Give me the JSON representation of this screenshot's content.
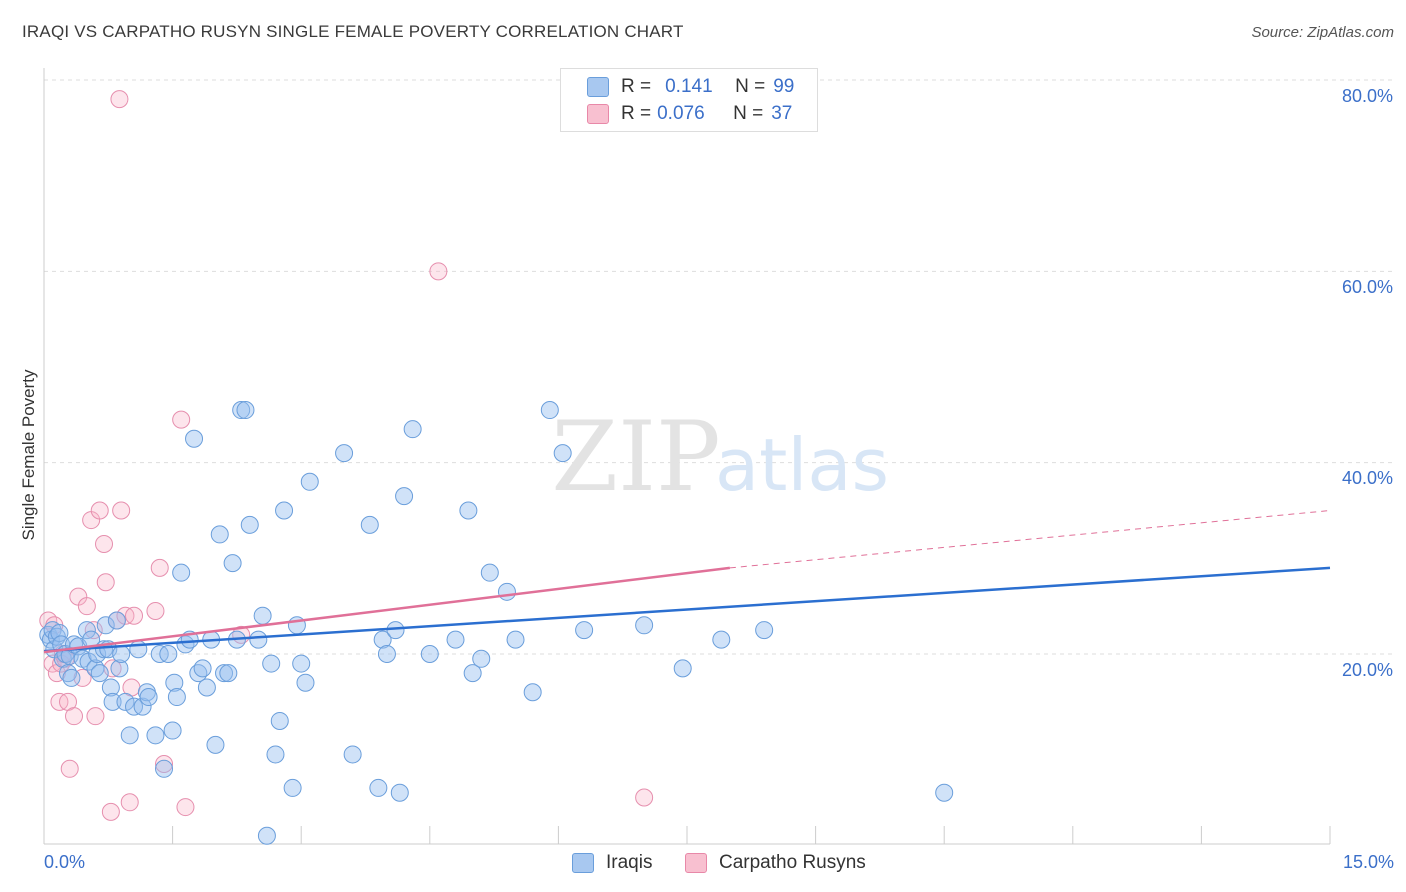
{
  "title": "IRAQI VS CARPATHO RUSYN SINGLE FEMALE POVERTY CORRELATION CHART",
  "source": "Source: ZipAtlas.com",
  "watermark": {
    "zip": "ZIP",
    "atlas": "atlas"
  },
  "legend": {
    "rows": [
      {
        "r_label": "R =",
        "r_value": "0.141",
        "n_label": "N =",
        "n_value": "99",
        "color": "#a8c8f0",
        "border": "#6a9edb"
      },
      {
        "r_label": "R =",
        "r_value": "0.076",
        "n_label": "N =",
        "n_value": "37",
        "color": "#f8c0d0",
        "border": "#e888a8"
      }
    ]
  },
  "bottom_legend": [
    {
      "label": "Iraqis",
      "color": "#a8c8f0",
      "border": "#6a9edb"
    },
    {
      "label": "Carpatho Rusyns",
      "color": "#f8c0d0",
      "border": "#e888a8"
    }
  ],
  "colors": {
    "blue_fill": "rgba(150,190,240,0.45)",
    "blue_stroke": "#6a9edb",
    "blue_line": "#2b6fd0",
    "pink_fill": "rgba(248,180,200,0.35)",
    "pink_stroke": "#e68fae",
    "pink_line": "#e07098",
    "grid": "#dddddd",
    "tick_text": "#3b6fc9"
  },
  "chart_data": {
    "type": "scatter",
    "title": "IRAQI VS CARPATHO RUSYN SINGLE FEMALE POVERTY CORRELATION CHART",
    "xlabel": "",
    "ylabel": "Single Female Poverty",
    "xlim": [
      0,
      15
    ],
    "ylim": [
      0,
      82
    ],
    "x_tick_labels": [
      "0.0%",
      "15.0%"
    ],
    "y_ticks": [
      20,
      40,
      60,
      80
    ],
    "y_tick_labels": [
      "20.0%",
      "40.0%",
      "60.0%",
      "80.0%"
    ],
    "series": [
      {
        "name": "Iraqis",
        "trend": {
          "x": [
            0,
            15
          ],
          "y": [
            20.3,
            29.0
          ]
        },
        "points": [
          [
            0.05,
            22.0
          ],
          [
            0.08,
            21.5
          ],
          [
            0.1,
            22.5
          ],
          [
            0.12,
            20.5
          ],
          [
            0.15,
            21.8
          ],
          [
            0.18,
            22.2
          ],
          [
            0.2,
            21.0
          ],
          [
            0.22,
            19.5
          ],
          [
            0.25,
            20.0
          ],
          [
            0.28,
            18.0
          ],
          [
            0.3,
            19.8
          ],
          [
            0.32,
            17.5
          ],
          [
            0.35,
            21.0
          ],
          [
            0.4,
            20.8
          ],
          [
            0.45,
            19.5
          ],
          [
            0.5,
            22.5
          ],
          [
            0.52,
            19.2
          ],
          [
            0.55,
            21.5
          ],
          [
            0.6,
            18.5
          ],
          [
            0.62,
            20.0
          ],
          [
            0.65,
            18.0
          ],
          [
            0.7,
            20.5
          ],
          [
            0.72,
            23.0
          ],
          [
            0.75,
            20.5
          ],
          [
            0.78,
            16.5
          ],
          [
            0.8,
            15.0
          ],
          [
            0.85,
            23.5
          ],
          [
            0.88,
            18.5
          ],
          [
            0.9,
            20.0
          ],
          [
            0.95,
            15.0
          ],
          [
            1.0,
            11.5
          ],
          [
            1.05,
            14.5
          ],
          [
            1.1,
            20.5
          ],
          [
            1.15,
            14.5
          ],
          [
            1.2,
            16.0
          ],
          [
            1.22,
            15.5
          ],
          [
            1.3,
            11.5
          ],
          [
            1.35,
            20.0
          ],
          [
            1.4,
            8.0
          ],
          [
            1.45,
            20.0
          ],
          [
            1.5,
            12.0
          ],
          [
            1.52,
            17.0
          ],
          [
            1.55,
            15.5
          ],
          [
            1.6,
            28.5
          ],
          [
            1.65,
            21.0
          ],
          [
            1.7,
            21.5
          ],
          [
            1.75,
            42.5
          ],
          [
            1.8,
            18.0
          ],
          [
            1.85,
            18.5
          ],
          [
            1.9,
            16.5
          ],
          [
            1.95,
            21.5
          ],
          [
            2.0,
            10.5
          ],
          [
            2.05,
            32.5
          ],
          [
            2.1,
            18.0
          ],
          [
            2.15,
            18.0
          ],
          [
            2.2,
            29.5
          ],
          [
            2.25,
            21.5
          ],
          [
            2.3,
            45.5
          ],
          [
            2.35,
            45.5
          ],
          [
            2.4,
            33.5
          ],
          [
            2.5,
            21.5
          ],
          [
            2.55,
            24.0
          ],
          [
            2.6,
            1.0
          ],
          [
            2.65,
            19.0
          ],
          [
            2.7,
            9.5
          ],
          [
            2.75,
            13.0
          ],
          [
            2.8,
            35.0
          ],
          [
            2.9,
            6.0
          ],
          [
            2.95,
            23.0
          ],
          [
            3.0,
            19.0
          ],
          [
            3.05,
            17.0
          ],
          [
            3.1,
            38.0
          ],
          [
            3.5,
            41.0
          ],
          [
            3.6,
            9.5
          ],
          [
            3.8,
            33.5
          ],
          [
            3.9,
            6.0
          ],
          [
            3.95,
            21.5
          ],
          [
            4.0,
            20.0
          ],
          [
            4.1,
            22.5
          ],
          [
            4.15,
            5.5
          ],
          [
            4.2,
            36.5
          ],
          [
            4.3,
            43.5
          ],
          [
            4.5,
            20.0
          ],
          [
            4.8,
            21.5
          ],
          [
            4.95,
            35.0
          ],
          [
            5.0,
            18.0
          ],
          [
            5.1,
            19.5
          ],
          [
            5.2,
            28.5
          ],
          [
            5.4,
            26.5
          ],
          [
            5.5,
            21.5
          ],
          [
            5.7,
            16.0
          ],
          [
            5.9,
            45.5
          ],
          [
            6.05,
            41.0
          ],
          [
            6.3,
            22.5
          ],
          [
            7.0,
            23.0
          ],
          [
            7.45,
            18.5
          ],
          [
            7.9,
            21.5
          ],
          [
            8.4,
            22.5
          ],
          [
            10.5,
            5.5
          ]
        ]
      },
      {
        "name": "Carpatho Rusyns",
        "trend": {
          "x": [
            0,
            8.0
          ],
          "y": [
            20.2,
            29.0
          ]
        },
        "trend_dashed": {
          "x": [
            8.0,
            15
          ],
          "y": [
            29.0,
            35.0
          ]
        },
        "points": [
          [
            0.05,
            23.5
          ],
          [
            0.1,
            19.0
          ],
          [
            0.15,
            18.0
          ],
          [
            0.18,
            15.0
          ],
          [
            0.2,
            19.0
          ],
          [
            0.22,
            20.0
          ],
          [
            0.25,
            19.5
          ],
          [
            0.28,
            15.0
          ],
          [
            0.3,
            8.0
          ],
          [
            0.35,
            13.5
          ],
          [
            0.4,
            26.0
          ],
          [
            0.45,
            17.5
          ],
          [
            0.5,
            25.0
          ],
          [
            0.55,
            34.0
          ],
          [
            0.58,
            22.5
          ],
          [
            0.6,
            13.5
          ],
          [
            0.65,
            35.0
          ],
          [
            0.7,
            31.5
          ],
          [
            0.72,
            27.5
          ],
          [
            0.78,
            3.5
          ],
          [
            0.8,
            18.5
          ],
          [
            0.85,
            23.5
          ],
          [
            0.88,
            78.0
          ],
          [
            0.9,
            35.0
          ],
          [
            0.95,
            24.0
          ],
          [
            1.0,
            4.5
          ],
          [
            1.02,
            16.5
          ],
          [
            1.05,
            24.0
          ],
          [
            1.3,
            24.5
          ],
          [
            1.35,
            29.0
          ],
          [
            1.4,
            8.5
          ],
          [
            1.6,
            44.5
          ],
          [
            1.65,
            4.0
          ],
          [
            2.3,
            22.0
          ],
          [
            4.6,
            60.0
          ],
          [
            7.0,
            5.0
          ],
          [
            0.12,
            23.0
          ]
        ]
      }
    ]
  }
}
